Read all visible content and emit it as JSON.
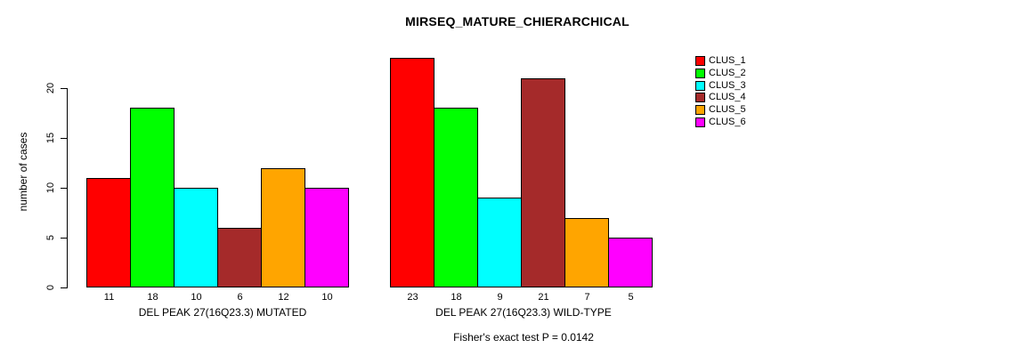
{
  "chart_data": {
    "type": "bar",
    "title": "MIRSEQ_MATURE_CHIERARCHICAL",
    "ylabel": "number of cases",
    "ylim": [
      0,
      20
    ],
    "yticks": [
      0,
      5,
      10,
      15,
      20
    ],
    "grid": false,
    "legend_position": "right",
    "clusters": [
      {
        "name": "CLUS_1",
        "color": "#FF0000"
      },
      {
        "name": "CLUS_2",
        "color": "#00FF00"
      },
      {
        "name": "CLUS_3",
        "color": "#00FFFF"
      },
      {
        "name": "CLUS_4",
        "color": "#A52A2A"
      },
      {
        "name": "CLUS_5",
        "color": "#FFA500"
      },
      {
        "name": "CLUS_6",
        "color": "#FF00FF"
      }
    ],
    "groups": [
      {
        "label": "DEL PEAK 27(16Q23.3) MUTATED",
        "values": [
          11,
          18,
          10,
          6,
          12,
          10
        ]
      },
      {
        "label": "DEL PEAK 27(16Q23.3) WILD-TYPE",
        "values": [
          23,
          18,
          9,
          21,
          7,
          5
        ]
      }
    ],
    "footnote": "Fisher's exact test P = 0.0142"
  }
}
